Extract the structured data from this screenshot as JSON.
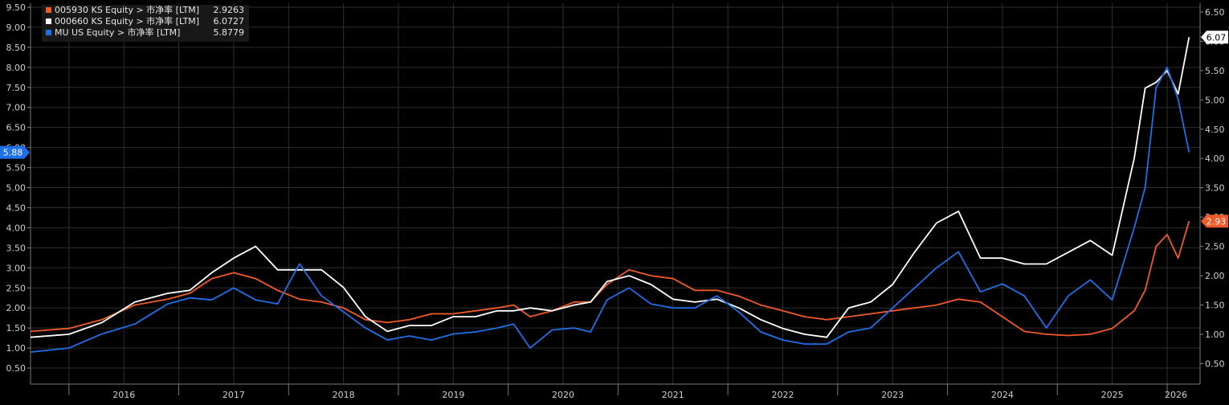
{
  "chart_data": {
    "type": "line",
    "title": "",
    "xlabel": "",
    "ylabel": "",
    "grid": true,
    "legend_position": "top-left",
    "x_ticks": [
      "2016",
      "2017",
      "2018",
      "2019",
      "2020",
      "2021",
      "2022",
      "2023",
      "2024",
      "2025",
      "2026"
    ],
    "x_range": [
      2015.65,
      2026.3
    ],
    "left_axis": {
      "ylim": [
        0.1,
        9.6
      ],
      "ticks": [
        "0.50",
        "1.00",
        "1.50",
        "2.00",
        "2.50",
        "3.00",
        "3.50",
        "4.00",
        "4.50",
        "5.00",
        "5.50",
        "6.00",
        "6.50",
        "7.00",
        "7.50",
        "8.00",
        "8.50",
        "9.00",
        "9.50"
      ]
    },
    "right_axis": {
      "ylim": [
        0.15,
        6.65
      ],
      "ticks": [
        "0.50",
        "1.00",
        "1.50",
        "2.00",
        "2.50",
        "3.00",
        "3.50",
        "4.00",
        "4.50",
        "5.00",
        "5.50",
        "6.00",
        "6.50"
      ]
    },
    "series": [
      {
        "name": "005930 KS Equity > 市净率 [LTM]",
        "last_label": "2.9263",
        "tag": "2.93",
        "color": "#f05a28",
        "axis": "right",
        "x": [
          2015.65,
          2016.0,
          2016.3,
          2016.6,
          2016.9,
          2017.1,
          2017.3,
          2017.5,
          2017.7,
          2017.9,
          2018.1,
          2018.3,
          2018.5,
          2018.7,
          2018.9,
          2019.1,
          2019.3,
          2019.5,
          2019.7,
          2019.9,
          2020.05,
          2020.2,
          2020.4,
          2020.6,
          2020.75,
          2020.9,
          2021.1,
          2021.3,
          2021.5,
          2021.7,
          2021.9,
          2022.1,
          2022.3,
          2022.5,
          2022.7,
          2022.9,
          2023.1,
          2023.3,
          2023.5,
          2023.7,
          2023.9,
          2024.1,
          2024.3,
          2024.5,
          2024.7,
          2024.9,
          2025.1,
          2025.3,
          2025.5,
          2025.7,
          2025.8,
          2025.9,
          2026.0,
          2026.1,
          2026.2
        ],
        "y": [
          1.05,
          1.1,
          1.25,
          1.5,
          1.6,
          1.7,
          1.95,
          2.05,
          1.95,
          1.75,
          1.6,
          1.55,
          1.45,
          1.25,
          1.2,
          1.25,
          1.35,
          1.35,
          1.4,
          1.45,
          1.5,
          1.3,
          1.4,
          1.55,
          1.55,
          1.85,
          2.1,
          2.0,
          1.95,
          1.75,
          1.75,
          1.65,
          1.5,
          1.4,
          1.3,
          1.25,
          1.3,
          1.35,
          1.4,
          1.45,
          1.5,
          1.6,
          1.55,
          1.3,
          1.05,
          1.0,
          0.98,
          1.0,
          1.1,
          1.4,
          1.75,
          2.5,
          2.7,
          2.3,
          2.93
        ]
      },
      {
        "name": "000660 KS Equity > 市净率 [LTM]",
        "last_label": "6.0727",
        "tag": "6.07",
        "color": "#ffffff",
        "axis": "right",
        "x": [
          2015.65,
          2016.0,
          2016.3,
          2016.6,
          2016.9,
          2017.1,
          2017.3,
          2017.5,
          2017.7,
          2017.9,
          2018.1,
          2018.3,
          2018.5,
          2018.7,
          2018.9,
          2019.1,
          2019.3,
          2019.5,
          2019.7,
          2019.9,
          2020.05,
          2020.2,
          2020.4,
          2020.6,
          2020.75,
          2020.9,
          2021.1,
          2021.3,
          2021.5,
          2021.7,
          2021.9,
          2022.1,
          2022.3,
          2022.5,
          2022.7,
          2022.9,
          2023.1,
          2023.3,
          2023.5,
          2023.7,
          2023.9,
          2024.1,
          2024.3,
          2024.5,
          2024.7,
          2024.9,
          2025.1,
          2025.3,
          2025.5,
          2025.7,
          2025.8,
          2025.9,
          2026.0,
          2026.1,
          2026.2
        ],
        "y": [
          0.95,
          1.0,
          1.2,
          1.55,
          1.7,
          1.75,
          2.05,
          2.3,
          2.5,
          2.1,
          2.1,
          2.1,
          1.8,
          1.3,
          1.05,
          1.15,
          1.15,
          1.3,
          1.3,
          1.4,
          1.4,
          1.45,
          1.4,
          1.5,
          1.55,
          1.9,
          2.0,
          1.85,
          1.6,
          1.55,
          1.6,
          1.45,
          1.25,
          1.1,
          1.0,
          0.95,
          1.45,
          1.55,
          1.85,
          2.4,
          2.9,
          3.1,
          2.3,
          2.3,
          2.2,
          2.2,
          2.4,
          2.6,
          2.35,
          4.0,
          5.2,
          5.3,
          5.5,
          5.1,
          6.07
        ]
      },
      {
        "name": "MU US Equity > 市净率 [LTM]",
        "last_label": "5.8779",
        "tag": "5.88",
        "color": "#1f6fe8",
        "axis": "left",
        "x": [
          2015.65,
          2016.0,
          2016.3,
          2016.6,
          2016.9,
          2017.1,
          2017.3,
          2017.5,
          2017.7,
          2017.9,
          2018.1,
          2018.3,
          2018.5,
          2018.7,
          2018.9,
          2019.1,
          2019.3,
          2019.5,
          2019.7,
          2019.9,
          2020.05,
          2020.2,
          2020.4,
          2020.6,
          2020.75,
          2020.9,
          2021.1,
          2021.3,
          2021.5,
          2021.7,
          2021.9,
          2022.1,
          2022.3,
          2022.5,
          2022.7,
          2022.9,
          2023.1,
          2023.3,
          2023.5,
          2023.7,
          2023.9,
          2024.1,
          2024.3,
          2024.5,
          2024.7,
          2024.9,
          2025.1,
          2025.3,
          2025.5,
          2025.7,
          2025.8,
          2025.9,
          2026.0,
          2026.1,
          2026.2
        ],
        "y": [
          0.9,
          1.0,
          1.35,
          1.6,
          2.1,
          2.25,
          2.2,
          2.5,
          2.2,
          2.1,
          3.1,
          2.3,
          1.9,
          1.5,
          1.2,
          1.3,
          1.2,
          1.35,
          1.4,
          1.5,
          1.6,
          1.0,
          1.45,
          1.5,
          1.4,
          2.2,
          2.5,
          2.1,
          2.0,
          2.0,
          2.3,
          1.9,
          1.4,
          1.2,
          1.1,
          1.1,
          1.4,
          1.5,
          2.0,
          2.5,
          3.0,
          3.4,
          2.4,
          2.6,
          2.3,
          1.5,
          2.3,
          2.7,
          2.2,
          4.0,
          5.0,
          7.5,
          8.0,
          7.2,
          5.88
        ]
      }
    ]
  },
  "legend": [
    {
      "name": "005930 KS Equity > 市净率 [LTM]",
      "value": "2.9263",
      "color": "#f05a28"
    },
    {
      "name": "000660 KS Equity > 市净率 [LTM]",
      "value": "6.0727",
      "color": "#ffffff"
    },
    {
      "name": "MU US Equity > 市净率 [LTM]",
      "value": "5.8779",
      "color": "#1f6fe8"
    }
  ]
}
